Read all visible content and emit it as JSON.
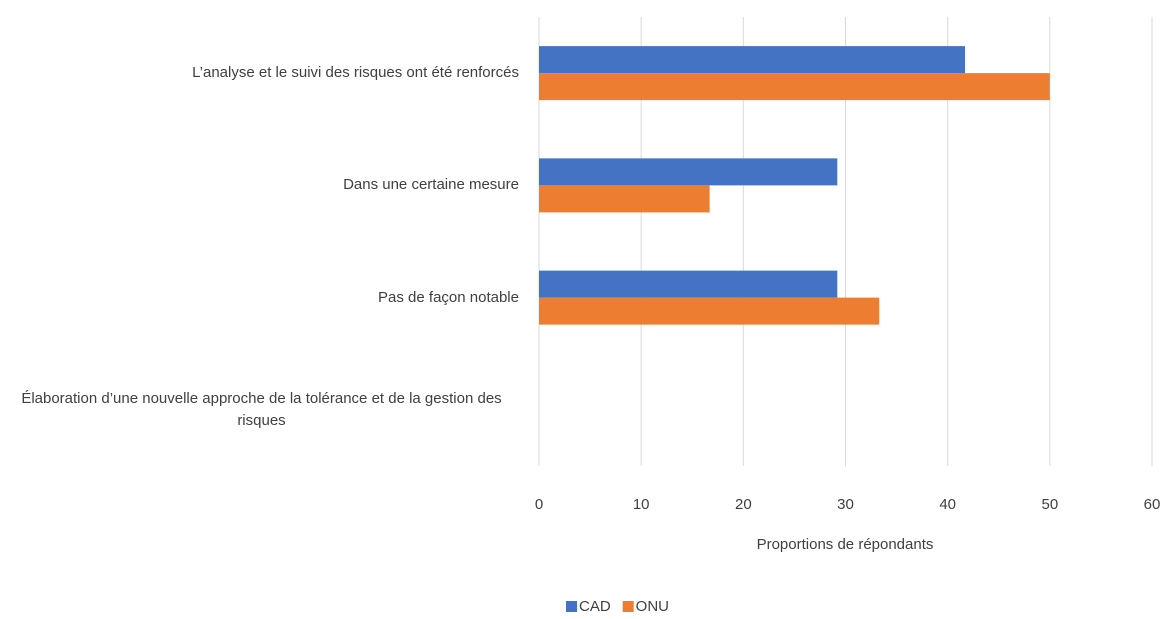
{
  "chart_data": {
    "type": "hbar",
    "categories": [
      "L’analyse et le suivi des risques ont été renforcés",
      "Dans une certaine mesure",
      "Pas de façon notable",
      "Élaboration d’une nouvelle approche de la tolérance et de la gestion des risques"
    ],
    "series": [
      {
        "name": "CAD",
        "color": "#4472c4",
        "values": [
          41.7,
          29.2,
          29.2,
          0
        ]
      },
      {
        "name": "ONU",
        "color": "#ed7d31",
        "values": [
          50,
          16.7,
          33.3,
          0
        ]
      }
    ],
    "xlabel": "Proportions de répondants",
    "xlim": [
      0,
      60
    ],
    "xticks": [
      0,
      10,
      20,
      30,
      40,
      50,
      60
    ],
    "grid": true,
    "legend": "bottom"
  }
}
